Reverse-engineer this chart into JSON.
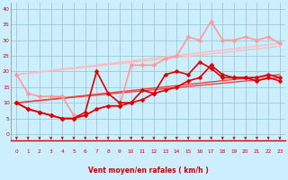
{
  "xlabel": "Vent moyen/en rafales ( km/h )",
  "background_color": "#cceeff",
  "grid_color": "#99cccc",
  "x_ticks": [
    0,
    1,
    2,
    3,
    4,
    5,
    6,
    7,
    8,
    9,
    10,
    11,
    12,
    13,
    14,
    15,
    16,
    17,
    18,
    19,
    20,
    21,
    22,
    23
  ],
  "y_ticks": [
    0,
    5,
    10,
    15,
    20,
    25,
    30,
    35,
    40
  ],
  "ylim": [
    -2,
    42
  ],
  "xlim": [
    -0.5,
    23.5
  ],
  "series": [
    {
      "x": [
        0,
        1,
        2,
        3,
        4,
        5,
        6,
        7,
        8,
        9,
        10,
        11,
        12,
        13,
        14,
        15,
        16,
        17,
        18,
        19,
        20,
        21,
        22,
        23
      ],
      "y": [
        10,
        8,
        7,
        6,
        5,
        5,
        6,
        8,
        9,
        9,
        10,
        11,
        13,
        14,
        15,
        17,
        18,
        22,
        19,
        18,
        18,
        17,
        18,
        17
      ],
      "color": "#dd0000",
      "lw": 1.2,
      "marker": "D",
      "ms": 2.5,
      "zorder": 5
    },
    {
      "x": [
        0,
        1,
        2,
        3,
        4,
        5,
        6,
        7,
        8,
        9,
        10,
        11,
        12,
        13,
        14,
        15,
        16,
        17,
        18,
        19,
        20,
        21,
        22,
        23
      ],
      "y": [
        10,
        8,
        7,
        6,
        5,
        5,
        7,
        20,
        13,
        10,
        10,
        14,
        13,
        19,
        20,
        19,
        23,
        21,
        18,
        18,
        18,
        18,
        19,
        18
      ],
      "color": "#dd0000",
      "lw": 1.2,
      "marker": "D",
      "ms": 2.5,
      "zorder": 5
    },
    {
      "x": [
        0,
        1,
        2,
        3,
        4,
        5,
        6,
        7,
        8,
        9,
        10,
        11,
        12,
        13,
        14,
        15,
        16,
        17,
        18,
        19,
        20,
        21,
        22,
        23
      ],
      "y": [
        19,
        13,
        12,
        12,
        12,
        6,
        6,
        8,
        9,
        9,
        22,
        22,
        22,
        24,
        25,
        31,
        30,
        36,
        30,
        30,
        31,
        30,
        31,
        29
      ],
      "color": "#ff9999",
      "lw": 1.2,
      "marker": "D",
      "ms": 2.5,
      "zorder": 4
    },
    {
      "x": [
        0,
        23
      ],
      "y": [
        10,
        18
      ],
      "color": "#ee4444",
      "lw": 1.0,
      "marker": null,
      "ms": 0,
      "zorder": 3
    },
    {
      "x": [
        0,
        23
      ],
      "y": [
        10,
        19
      ],
      "color": "#ee4444",
      "lw": 1.0,
      "marker": null,
      "ms": 0,
      "zorder": 3
    },
    {
      "x": [
        0,
        23
      ],
      "y": [
        19,
        28
      ],
      "color": "#ffbbbb",
      "lw": 1.0,
      "marker": null,
      "ms": 0,
      "zorder": 2
    },
    {
      "x": [
        0,
        23
      ],
      "y": [
        19,
        29
      ],
      "color": "#ffbbbb",
      "lw": 1.0,
      "marker": null,
      "ms": 0,
      "zorder": 2
    }
  ],
  "arrow_color": "#cc0000",
  "xlabel_color": "#cc0000",
  "tick_label_color": "#cc0000"
}
